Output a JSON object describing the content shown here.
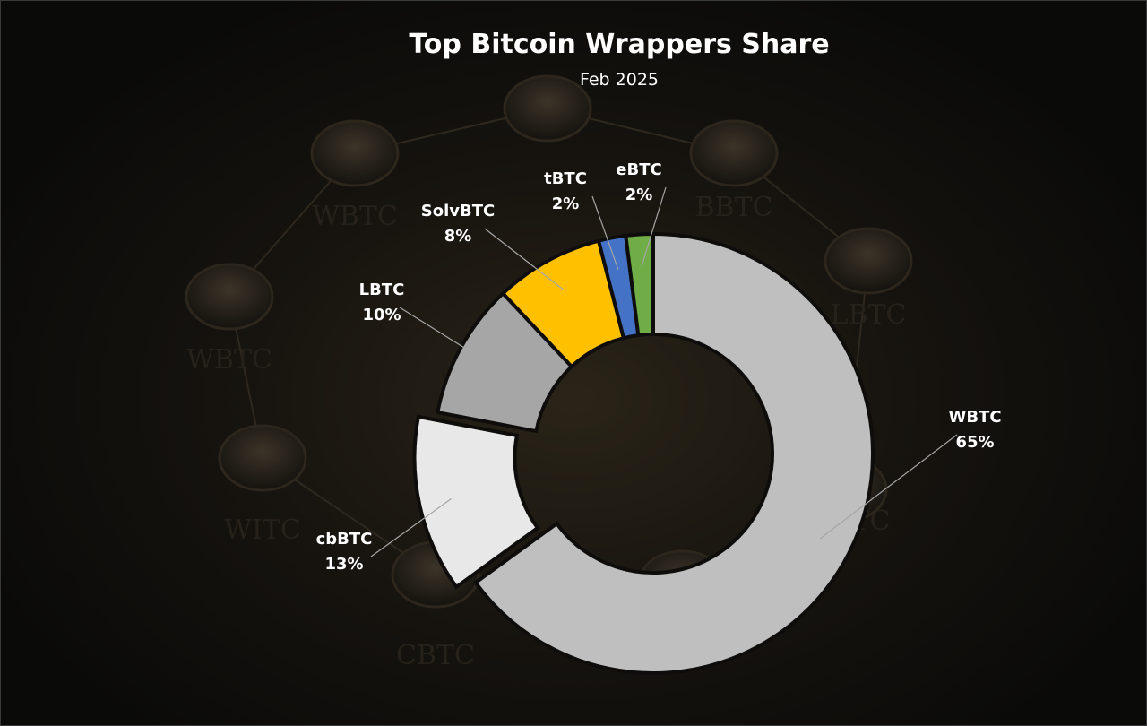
{
  "chart_data": {
    "type": "pie",
    "title": "Top Bitcoin Wrappers Share",
    "subtitle": "Feb 2025",
    "slices": [
      {
        "name": "WBTC",
        "value": 65,
        "label": "65%",
        "color": "#bfbfbf"
      },
      {
        "name": "cbBTC",
        "value": 13,
        "label": "13%",
        "color": "#e8e8e8"
      },
      {
        "name": "LBTC",
        "value": 10,
        "label": "10%",
        "color": "#a6a6a6"
      },
      {
        "name": "SolvBTC",
        "value": 8,
        "label": "8%",
        "color": "#ffc000"
      },
      {
        "name": "tBTC",
        "value": 2,
        "label": "2%",
        "color": "#4472c4"
      },
      {
        "name": "eBTC",
        "value": 2,
        "label": "2%",
        "color": "#70ad47"
      }
    ],
    "legend": "none"
  },
  "background": {
    "coin_labels": [
      "WBTC",
      "BBTC",
      "LBTC",
      "WBTC",
      "WITC",
      "CBTC",
      "LBTC",
      "BTC"
    ]
  }
}
